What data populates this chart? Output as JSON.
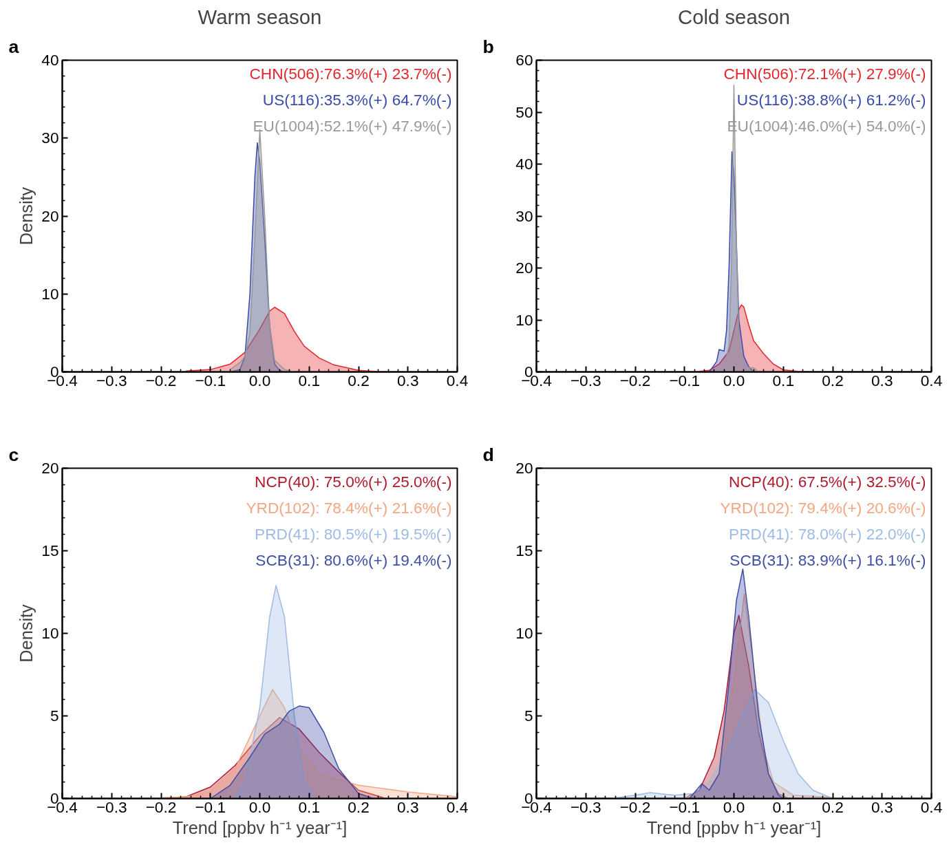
{
  "chart_data": [
    {
      "type": "area",
      "title": "Warm season",
      "ylabel": "Density",
      "annotations": [
        "a"
      ],
      "xlim": [
        -0.4,
        0.4
      ],
      "xticks": [
        {
          "value": -0.4,
          "label": "−0.4"
        },
        {
          "value": -0.3,
          "label": "−0.3"
        },
        {
          "value": -0.2,
          "label": "−0.2"
        },
        {
          "value": -0.1,
          "label": "−0.1"
        },
        {
          "value": 0,
          "label": "0.0"
        },
        0.1,
        0.2,
        0.3,
        0.4
      ],
      "ylim": [
        0,
        40
      ],
      "yticks": [
        0,
        10,
        20,
        30,
        40
      ],
      "series": [
        {
          "name": "CHN(506):76.3%(+) 23.7%(-)",
          "color": "#e3262b",
          "x": [
            -0.15,
            -0.1,
            -0.06,
            -0.03,
            0,
            0.02,
            0.03,
            0.05,
            0.07,
            0.09,
            0.12,
            0.15,
            0.2,
            0.25
          ],
          "values": [
            0.1,
            0.3,
            1,
            2.5,
            5.5,
            7.8,
            8.3,
            7.5,
            5.2,
            3.3,
            1.8,
            0.9,
            0.2,
            0
          ]
        },
        {
          "name": "US(116):35.3%(+) 64.7%(-)",
          "color": "#3a4aa8",
          "x": [
            -0.06,
            -0.04,
            -0.03,
            -0.02,
            -0.01,
            -0.005,
            0,
            0.01,
            0.02,
            0.03,
            0.04,
            0.05
          ],
          "values": [
            0,
            0.3,
            2,
            10,
            25,
            29.4,
            27,
            17,
            6,
            1,
            0.2,
            0
          ]
        },
        {
          "name": "EU(1004):52.1%(+) 47.9%(-)",
          "color": "#999999",
          "x": [
            -0.06,
            -0.04,
            -0.03,
            -0.02,
            -0.01,
            0,
            0.01,
            0.02,
            0.03,
            0.05,
            0.07
          ],
          "values": [
            0.3,
            1.2,
            2,
            5,
            17,
            31.1,
            20,
            6,
            1.5,
            0.3,
            0
          ]
        }
      ]
    },
    {
      "type": "area",
      "title": "Cold season",
      "annotations": [
        "b"
      ],
      "xlim": [
        -0.4,
        0.4
      ],
      "xticks": [
        {
          "value": -0.4,
          "label": "−0.4"
        },
        {
          "value": -0.3,
          "label": "−0.3"
        },
        {
          "value": -0.2,
          "label": "−0.2"
        },
        {
          "value": -0.1,
          "label": "−0.1"
        },
        {
          "value": 0,
          "label": "0.0"
        },
        0.1,
        0.2,
        0.3,
        0.4
      ],
      "ylim": [
        0,
        60
      ],
      "yticks": [
        0,
        10,
        20,
        30,
        40,
        50,
        60
      ],
      "series": [
        {
          "name": "CHN(506):72.1%(+) 27.9%(-)",
          "color": "#e3262b",
          "x": [
            -0.08,
            -0.05,
            -0.03,
            -0.01,
            0,
            0.01,
            0.015,
            0.02,
            0.03,
            0.04,
            0.06,
            0.08,
            0.1,
            0.13,
            0.16
          ],
          "values": [
            0,
            0.3,
            1.5,
            4,
            8,
            12,
            12.9,
            12.5,
            9,
            6,
            3.5,
            1.5,
            0.4,
            0.1,
            0
          ]
        },
        {
          "name": "US(116):38.8%(+) 61.2%(-)",
          "color": "#3a4aa8",
          "x": [
            -0.05,
            -0.035,
            -0.03,
            -0.02,
            -0.015,
            -0.01,
            -0.004,
            0,
            0.005,
            0.01,
            0.02,
            0.03,
            0.04
          ],
          "values": [
            0,
            2,
            4.3,
            4,
            8,
            20,
            42.4,
            38,
            25,
            10,
            3,
            1,
            0
          ]
        },
        {
          "name": "EU(1004):46.0%(+) 54.0%(-)",
          "color": "#999999",
          "x": [
            -0.04,
            -0.02,
            -0.01,
            -0.005,
            0,
            0.005,
            0.01,
            0.02,
            0.03,
            0.04,
            0.05
          ],
          "values": [
            0,
            1,
            5,
            20,
            55.2,
            25,
            6,
            1.5,
            0.8,
            0.8,
            0
          ]
        }
      ]
    },
    {
      "type": "area",
      "xlabel": "Trend [ppbv h⁻¹ year⁻¹]",
      "ylabel": "Density",
      "annotations": [
        "c"
      ],
      "xlim": [
        -0.4,
        0.4
      ],
      "xticks": [
        {
          "value": -0.4,
          "label": "−0.4"
        },
        {
          "value": -0.3,
          "label": "−0.3"
        },
        {
          "value": -0.2,
          "label": "−0.2"
        },
        {
          "value": -0.1,
          "label": "−0.1"
        },
        {
          "value": 0,
          "label": "0.0"
        },
        0.1,
        0.2,
        0.3,
        0.4
      ],
      "ylim": [
        0,
        20
      ],
      "yticks": [
        0,
        5,
        10,
        15,
        20
      ],
      "series": [
        {
          "name": "NCP(40): 75.0%(+) 25.0%(-)",
          "color": "#b2182b",
          "x": [
            -0.2,
            -0.15,
            -0.1,
            -0.05,
            0,
            0.04,
            0.08,
            0.12,
            0.16,
            0.2,
            0.25
          ],
          "values": [
            0,
            0.1,
            0.7,
            2,
            3.8,
            4.9,
            4.2,
            2.8,
            1.6,
            0.5,
            0.05
          ]
        },
        {
          "name": "YRD(102): 78.4%(+) 21.6%(-)",
          "color": "#f4a582",
          "x": [
            -0.2,
            -0.15,
            -0.1,
            -0.05,
            0,
            0.026,
            0.05,
            0.08,
            0.12,
            0.2,
            0.3,
            0.4
          ],
          "values": [
            0.05,
            0.1,
            0.4,
            1.8,
            5,
            6.6,
            5.5,
            3,
            1.5,
            0.8,
            0.4,
            0.1
          ]
        },
        {
          "name": "PRD(41): 80.5%(+) 19.5%(-)",
          "color": "#9ebbe3",
          "x": [
            -0.05,
            -0.03,
            0,
            0.02,
            0.033,
            0.05,
            0.07,
            0.09,
            0.11
          ],
          "values": [
            0,
            1,
            5.5,
            11,
            12.9,
            11,
            5,
            1,
            0
          ]
        },
        {
          "name": "SCB(31): 80.6%(+) 19.4%(-)",
          "color": "#3f4ea5",
          "x": [
            -0.1,
            -0.06,
            -0.02,
            0.01,
            0.04,
            0.06,
            0.08,
            0.1,
            0.13,
            0.16,
            0.2,
            0.23
          ],
          "values": [
            0,
            0.8,
            2.5,
            3.9,
            4.5,
            5.3,
            5.6,
            5.5,
            4,
            1.8,
            0.3,
            0
          ]
        }
      ]
    },
    {
      "type": "area",
      "xlabel": "Trend [ppbv h⁻¹ year⁻¹]",
      "annotations": [
        "d"
      ],
      "xlim": [
        -0.4,
        0.4
      ],
      "xticks": [
        {
          "value": -0.4,
          "label": "−0.4"
        },
        {
          "value": -0.3,
          "label": "−0.3"
        },
        {
          "value": -0.2,
          "label": "−0.2"
        },
        {
          "value": -0.1,
          "label": "−0.1"
        },
        {
          "value": 0,
          "label": "0.0"
        },
        0.1,
        0.2,
        0.3,
        0.4
      ],
      "ylim": [
        0,
        20
      ],
      "yticks": [
        0,
        5,
        10,
        15,
        20
      ],
      "series": [
        {
          "name": "NCP(40): 67.5%(+) 32.5%(-)",
          "color": "#b2182b",
          "x": [
            -0.1,
            -0.07,
            -0.04,
            -0.02,
            0,
            0.01,
            0.03,
            0.05,
            0.07,
            0.09,
            0.11
          ],
          "values": [
            0,
            0.5,
            2.5,
            5.3,
            10,
            11.1,
            8,
            4,
            1.5,
            0.3,
            0
          ]
        },
        {
          "name": "YRD(102): 79.4%(+) 20.6%(-)",
          "color": "#f4a582",
          "x": [
            -0.1,
            -0.06,
            -0.03,
            0,
            0.021,
            0.04,
            0.06,
            0.08,
            0.12,
            0.18,
            0.22
          ],
          "values": [
            0,
            0.5,
            2,
            7,
            12.4,
            8,
            3,
            1,
            0.2,
            0.1,
            0
          ]
        },
        {
          "name": "PRD(41): 78.0%(+) 22.0%(-)",
          "color": "#9ebbe3",
          "x": [
            -0.25,
            -0.2,
            -0.17,
            -0.12,
            -0.08,
            -0.05,
            -0.02,
            0.01,
            0.042,
            0.07,
            0.1,
            0.13,
            0.16,
            0.2
          ],
          "values": [
            0,
            0.2,
            0.35,
            0.2,
            0.3,
            1,
            2.5,
            4.5,
            6.6,
            5.8,
            3.5,
            1.5,
            0.5,
            0
          ]
        },
        {
          "name": "SCB(31): 83.9%(+) 16.1%(-)",
          "color": "#3f4ea5",
          "x": [
            -0.09,
            -0.065,
            -0.05,
            -0.03,
            -0.01,
            0.005,
            0.018,
            0.03,
            0.05,
            0.07,
            0.09,
            0.1
          ],
          "values": [
            0,
            0.9,
            0.5,
            1.5,
            7,
            12,
            13.9,
            11,
            5,
            1.5,
            0.2,
            0
          ]
        }
      ]
    }
  ]
}
